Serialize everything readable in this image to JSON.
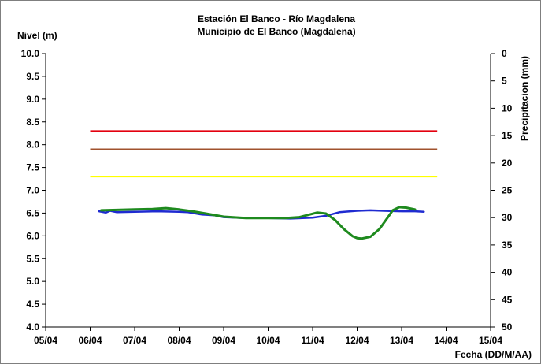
{
  "chart_data": {
    "type": "line",
    "title": "Estación El Banco - Río Magdalena",
    "subtitle": "Municipio de El Banco (Magdalena)",
    "ylabel": "Nivel (m)",
    "y2label": "Precipitacion (mm)",
    "xlabel": "Fecha (DD/M/AA)",
    "xlim": [
      0,
      10
    ],
    "x_ticks": [
      "05/04",
      "06/04",
      "07/04",
      "08/04",
      "09/04",
      "10/04",
      "11/04",
      "12/04",
      "13/04",
      "14/04",
      "15/04"
    ],
    "ylim": [
      4.0,
      10.0
    ],
    "y_ticks": [
      "4.0",
      "4.5",
      "5.0",
      "5.5",
      "6.0",
      "6.5",
      "7.0",
      "7.5",
      "8.0",
      "8.5",
      "9.0",
      "9.5",
      "10.0"
    ],
    "y2lim": [
      0,
      50
    ],
    "y2_ticks": [
      "0",
      "5",
      "10",
      "15",
      "20",
      "25",
      "30",
      "35",
      "40",
      "45",
      "50"
    ],
    "grid": false,
    "reference_lines": [
      {
        "color": "#e3000f",
        "y": 8.3,
        "x": [
          1.0,
          8.8
        ]
      },
      {
        "color": "#a0522d",
        "y": 7.9,
        "x": [
          1.0,
          8.8
        ]
      },
      {
        "color": "#ffff00",
        "y": 7.3,
        "x": [
          1.0,
          8.8
        ]
      }
    ],
    "series": [
      {
        "color": "#1f2bd1",
        "x": [
          1.2,
          1.35,
          1.45,
          1.6,
          2.0,
          2.5,
          3.0,
          3.2,
          3.5,
          3.8,
          4.0,
          4.5,
          5.0,
          5.5,
          6.0,
          6.3,
          6.6,
          7.0,
          7.3,
          7.6,
          8.0,
          8.3,
          8.5
        ],
        "y": [
          6.54,
          6.51,
          6.55,
          6.52,
          6.53,
          6.54,
          6.53,
          6.52,
          6.47,
          6.45,
          6.41,
          6.39,
          6.39,
          6.38,
          6.4,
          6.44,
          6.52,
          6.55,
          6.56,
          6.55,
          6.54,
          6.54,
          6.53
        ]
      },
      {
        "color": "#1e8a1e",
        "x": [
          1.25,
          1.6,
          2.0,
          2.4,
          2.7,
          3.0,
          3.3,
          3.6,
          4.0,
          4.5,
          5.0,
          5.4,
          5.7,
          5.9,
          6.1,
          6.3,
          6.5,
          6.7,
          6.9,
          7.0,
          7.1,
          7.3,
          7.5,
          7.7,
          7.8,
          7.95,
          8.1,
          8.3
        ],
        "y": [
          6.56,
          6.57,
          6.58,
          6.59,
          6.61,
          6.58,
          6.54,
          6.49,
          6.42,
          6.39,
          6.39,
          6.39,
          6.41,
          6.46,
          6.51,
          6.49,
          6.35,
          6.15,
          5.99,
          5.95,
          5.94,
          5.98,
          6.15,
          6.42,
          6.56,
          6.63,
          6.62,
          6.58
        ]
      }
    ]
  }
}
